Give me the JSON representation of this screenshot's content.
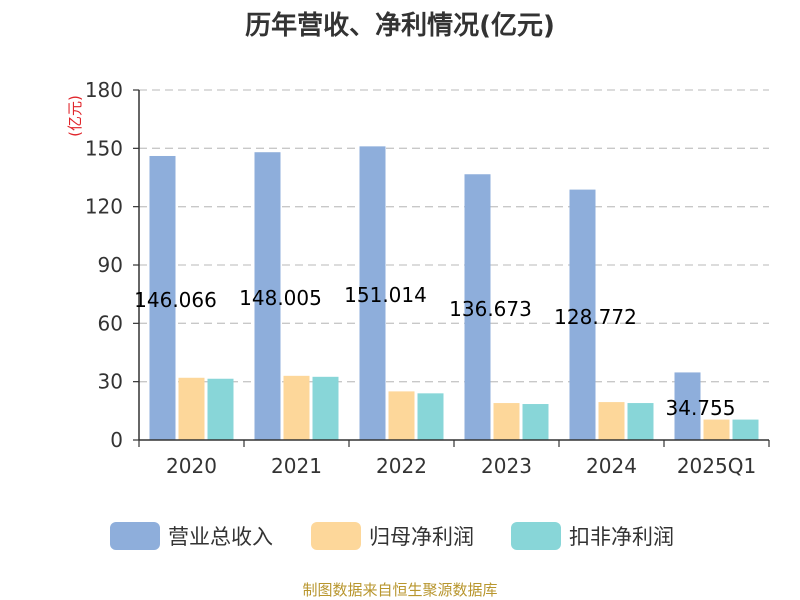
{
  "title": "历年营收、净利情况(亿元)",
  "source": "制图数据来自恒生聚源数据库",
  "chart_data": {
    "type": "bar",
    "title": "历年营收、净利情况(亿元)",
    "ylabel": "(亿元)",
    "xlabel": "",
    "ylim": [
      0,
      180
    ],
    "yticks": [
      0,
      30,
      60,
      90,
      120,
      150,
      180
    ],
    "grid": true,
    "legend_position": "bottom",
    "categories": [
      "2020",
      "2021",
      "2022",
      "2023",
      "2024",
      "2025Q1"
    ],
    "series": [
      {
        "name": "营业总收入",
        "color": "#8eaedb",
        "values": [
          146.066,
          148.005,
          151.014,
          136.673,
          128.772,
          34.755
        ]
      },
      {
        "name": "归母净利润",
        "color": "#fdd79a",
        "values": [
          32,
          33,
          25,
          19,
          19.5,
          10.5
        ]
      },
      {
        "name": "扣非净利润",
        "color": "#88d6d8",
        "values": [
          31.5,
          32.5,
          24,
          18.5,
          19,
          10.5
        ]
      }
    ],
    "data_labels": [
      "146.066",
      "148.005",
      "151.014",
      "136.673",
      "128.772",
      "34.755"
    ]
  }
}
